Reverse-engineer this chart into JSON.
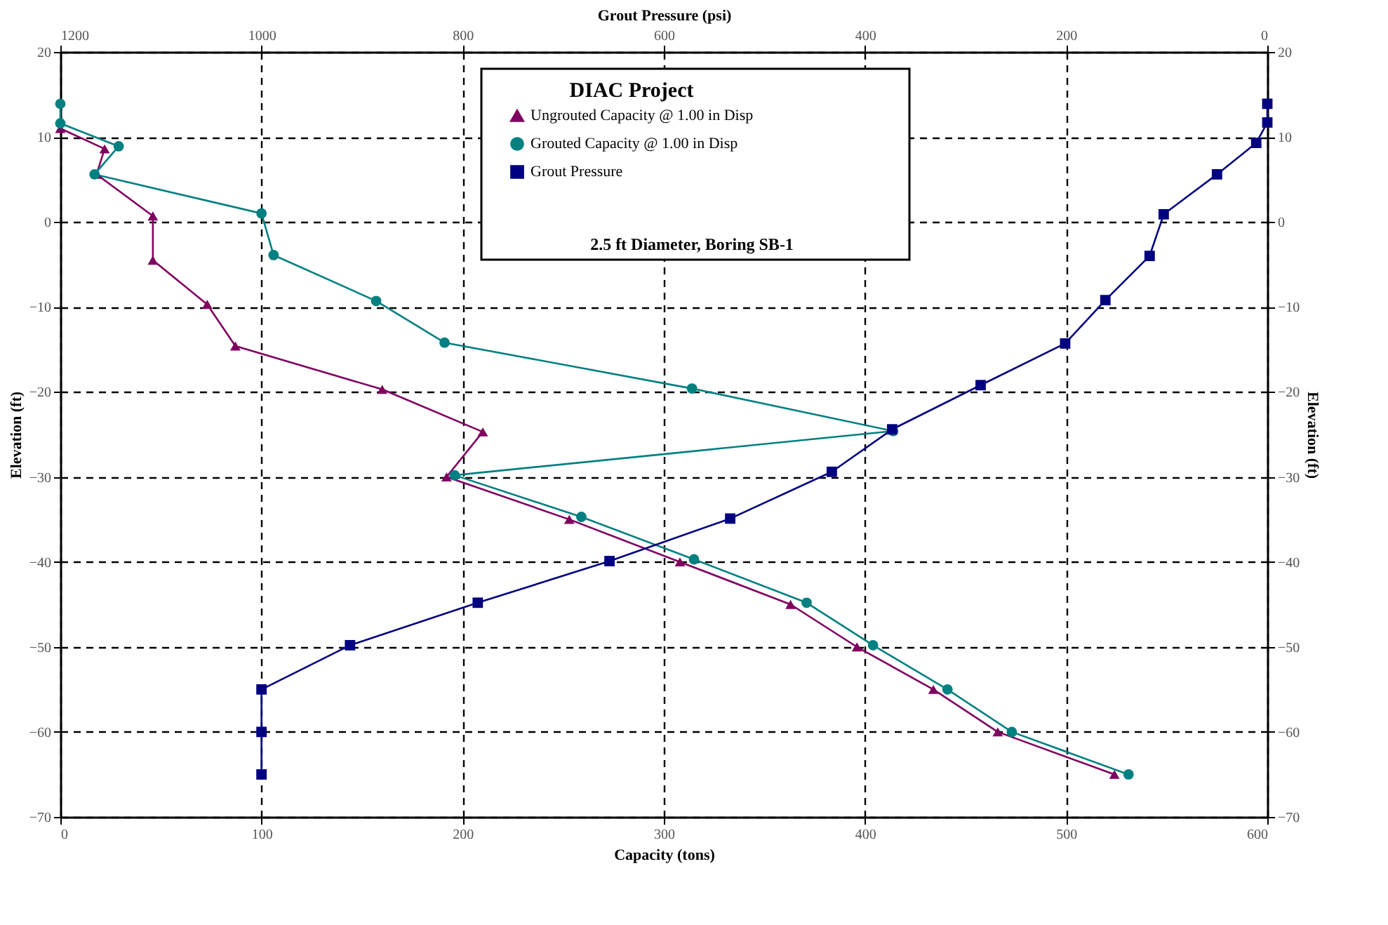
{
  "chart_data": {
    "type": "line",
    "xlabel": "Capacity (tons)",
    "ylabel": "Elevation (ft)",
    "x2label": "Grout Pressure (psi)",
    "y2label": "Elevation (ft)",
    "legend_title": "DIAC Project",
    "annotations": [
      "2.5 ft Diameter, Boring SB-1"
    ],
    "xlim": [
      0,
      600
    ],
    "xticks": [
      0,
      100,
      200,
      300,
      400,
      500,
      600
    ],
    "x2lim": [
      1200,
      0
    ],
    "x2ticks": [
      1200,
      1000,
      800,
      600,
      400,
      200,
      0
    ],
    "ylim": [
      -70,
      20
    ],
    "yticks": [
      -70,
      -60,
      -50,
      -40,
      -30,
      -20,
      -10,
      0,
      10,
      20
    ],
    "y2lim": [
      -70,
      20
    ],
    "y2ticks": [
      -70,
      -60,
      -50,
      -40,
      -30,
      -20,
      -10,
      0,
      10,
      20
    ],
    "grid": true,
    "legend": "top",
    "line_style": "solid",
    "series": [
      {
        "name": "Ungrouted Capacity @ 1.00 in Disp",
        "color": "#800060",
        "marker": "triangle",
        "x": [
          0,
          22,
          18,
          46,
          46,
          73,
          87,
          160,
          210,
          192,
          253,
          308,
          363,
          396,
          434,
          466,
          524
        ],
        "values": [
          11,
          8.6,
          5.6,
          0.7,
          -4.5,
          -9.7,
          -14.6,
          -19.7,
          -24.7,
          -30,
          -35,
          -40,
          -45,
          -50,
          -55,
          -60,
          -65
        ]
      },
      {
        "name": "Grouted Capacity @ 1.00 in Disp",
        "color": "#008080",
        "marker": "circle",
        "x": [
          0,
          0,
          29,
          17,
          100,
          106,
          157,
          191,
          314,
          414,
          196,
          259,
          315,
          371,
          404,
          441,
          473,
          531
        ],
        "values": [
          13.9,
          11.6,
          8.9,
          5.6,
          1.0,
          -3.9,
          -9.3,
          -14.2,
          -19.6,
          -24.6,
          -29.8,
          -34.7,
          -39.7,
          -44.8,
          -49.8,
          -55,
          -60,
          -65
        ]
      },
      {
        "name": "Grout Pressure",
        "color": "#000080",
        "marker": "square",
        "axis": "x2",
        "x": [
          0,
          0,
          11,
          50,
          103,
          117,
          161,
          201,
          285,
          373,
          433,
          534,
          654,
          785,
          912,
          1000,
          1000,
          1000
        ],
        "values": [
          13.9,
          11.7,
          9.3,
          5.6,
          0.9,
          -4,
          -9.2,
          -14.3,
          -19.2,
          -24.4,
          -29.4,
          -34.9,
          -39.9,
          -44.8,
          -49.8,
          -55,
          -60,
          -65
        ]
      }
    ]
  }
}
